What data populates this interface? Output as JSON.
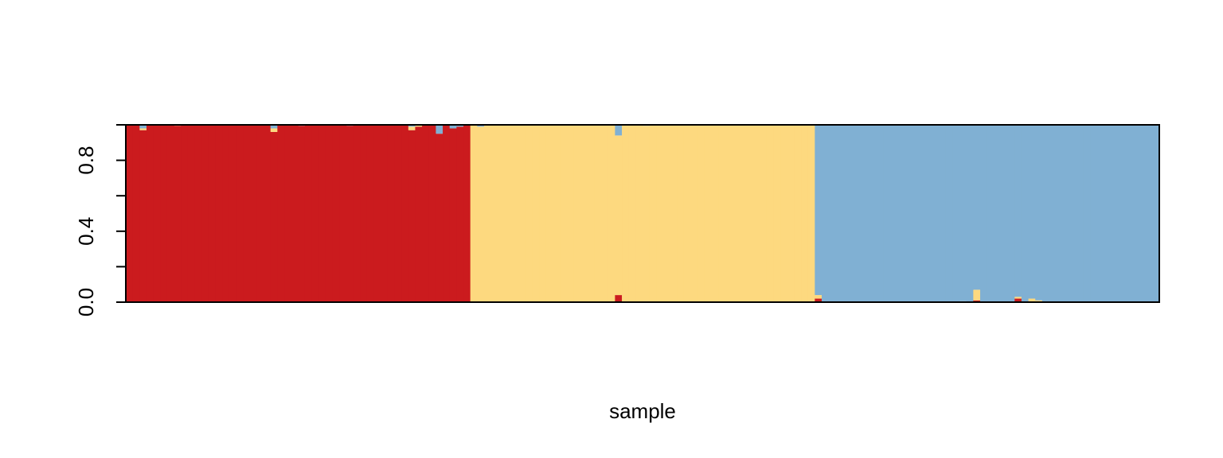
{
  "chart_data": {
    "type": "bar",
    "stacked": true,
    "xlabel": "sample",
    "ylabel": "",
    "title": "",
    "ylim": [
      0,
      1
    ],
    "yticks": [
      0.0,
      0.4,
      0.8
    ],
    "ytick_labels": [
      "0.0",
      "0.4",
      "0.8"
    ],
    "ytick_marks": [
      0.0,
      0.2,
      0.4,
      0.6,
      0.8,
      1.0
    ],
    "colors": [
      "#CB1B1E",
      "#FDD97F",
      "#80B0D3"
    ],
    "n_samples": 150,
    "groups": [
      {
        "start": 0,
        "count": 50,
        "dominant": 0
      },
      {
        "start": 50,
        "count": 50,
        "dominant": 1
      },
      {
        "start": 100,
        "count": 50,
        "dominant": 2
      }
    ],
    "deviations": [
      {
        "sample": 2,
        "values": [
          0.97,
          0.01,
          0.02
        ]
      },
      {
        "sample": 7,
        "values": [
          0.995,
          0.005,
          0.0
        ]
      },
      {
        "sample": 21,
        "values": [
          0.96,
          0.02,
          0.02
        ]
      },
      {
        "sample": 25,
        "values": [
          0.995,
          0.0,
          0.005
        ]
      },
      {
        "sample": 32,
        "values": [
          0.995,
          0.0,
          0.005
        ]
      },
      {
        "sample": 41,
        "values": [
          0.97,
          0.02,
          0.01
        ]
      },
      {
        "sample": 42,
        "values": [
          0.99,
          0.01,
          0.0
        ]
      },
      {
        "sample": 45,
        "values": [
          0.95,
          0.0,
          0.05
        ]
      },
      {
        "sample": 47,
        "values": [
          0.98,
          0.0,
          0.02
        ]
      },
      {
        "sample": 48,
        "values": [
          0.99,
          0.0,
          0.01
        ]
      },
      {
        "sample": 51,
        "values": [
          0.0,
          0.99,
          0.01
        ]
      },
      {
        "sample": 58,
        "values": [
          0.002,
          0.998,
          0.0
        ]
      },
      {
        "sample": 65,
        "values": [
          0.005,
          0.995,
          0.0
        ]
      },
      {
        "sample": 71,
        "values": [
          0.04,
          0.9,
          0.06
        ]
      },
      {
        "sample": 75,
        "values": [
          0.005,
          0.99,
          0.005
        ]
      },
      {
        "sample": 79,
        "values": [
          0.002,
          0.998,
          0.0
        ]
      },
      {
        "sample": 100,
        "values": [
          0.02,
          0.02,
          0.96
        ]
      },
      {
        "sample": 121,
        "values": [
          0.0,
          0.005,
          0.995
        ]
      },
      {
        "sample": 123,
        "values": [
          0.01,
          0.06,
          0.93
        ]
      },
      {
        "sample": 129,
        "values": [
          0.02,
          0.01,
          0.97
        ]
      },
      {
        "sample": 131,
        "values": [
          0.0,
          0.02,
          0.98
        ]
      },
      {
        "sample": 132,
        "values": [
          0.0,
          0.01,
          0.99
        ]
      }
    ]
  }
}
